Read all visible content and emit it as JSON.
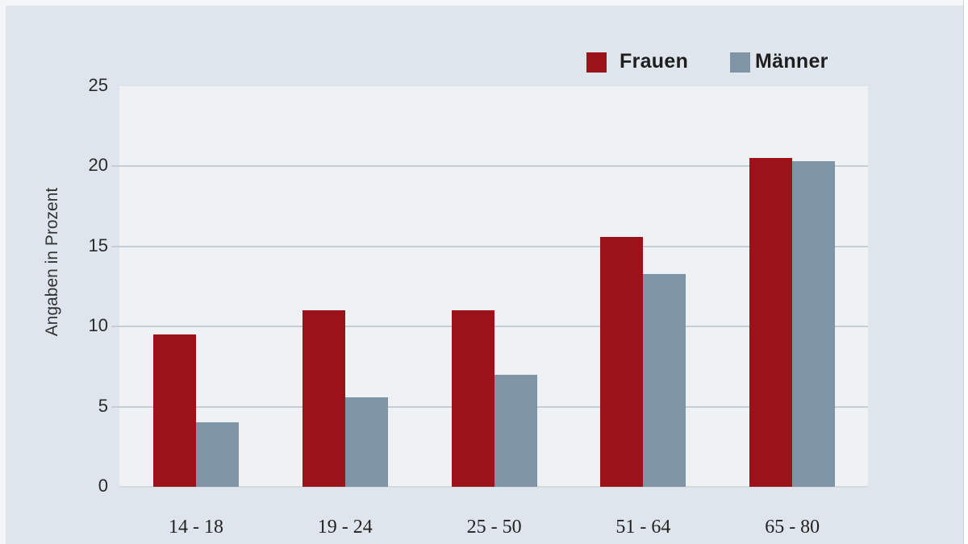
{
  "legend": {
    "frauen": {
      "label": "Frauen",
      "color": "#9b1219"
    },
    "maenner": {
      "label": "Männer",
      "color": "#7f95a6"
    }
  },
  "axes": {
    "ylabel": "Angaben in Prozent",
    "yticks": [
      "0",
      "5",
      "10",
      "15",
      "20",
      "25"
    ],
    "xticks": [
      "14 - 18",
      "19 - 24",
      "25 - 50",
      "51 - 64",
      "65 - 80"
    ]
  },
  "chart_data": {
    "type": "bar",
    "title": "",
    "xlabel": "",
    "ylabel": "Angaben in Prozent",
    "categories": [
      "14 - 18",
      "19 - 24",
      "25 - 50",
      "51 - 64",
      "65 - 80"
    ],
    "series": [
      {
        "name": "Frauen",
        "color": "#9b1219",
        "values": [
          9.5,
          11.0,
          11.0,
          15.6,
          20.5
        ]
      },
      {
        "name": "Männer",
        "color": "#7f95a6",
        "values": [
          4.0,
          5.6,
          7.0,
          13.3,
          20.3
        ]
      }
    ],
    "ylim": [
      0,
      25
    ],
    "yticks": [
      0,
      5,
      10,
      15,
      20,
      25
    ],
    "grid": true,
    "legend_position": "top-right"
  }
}
